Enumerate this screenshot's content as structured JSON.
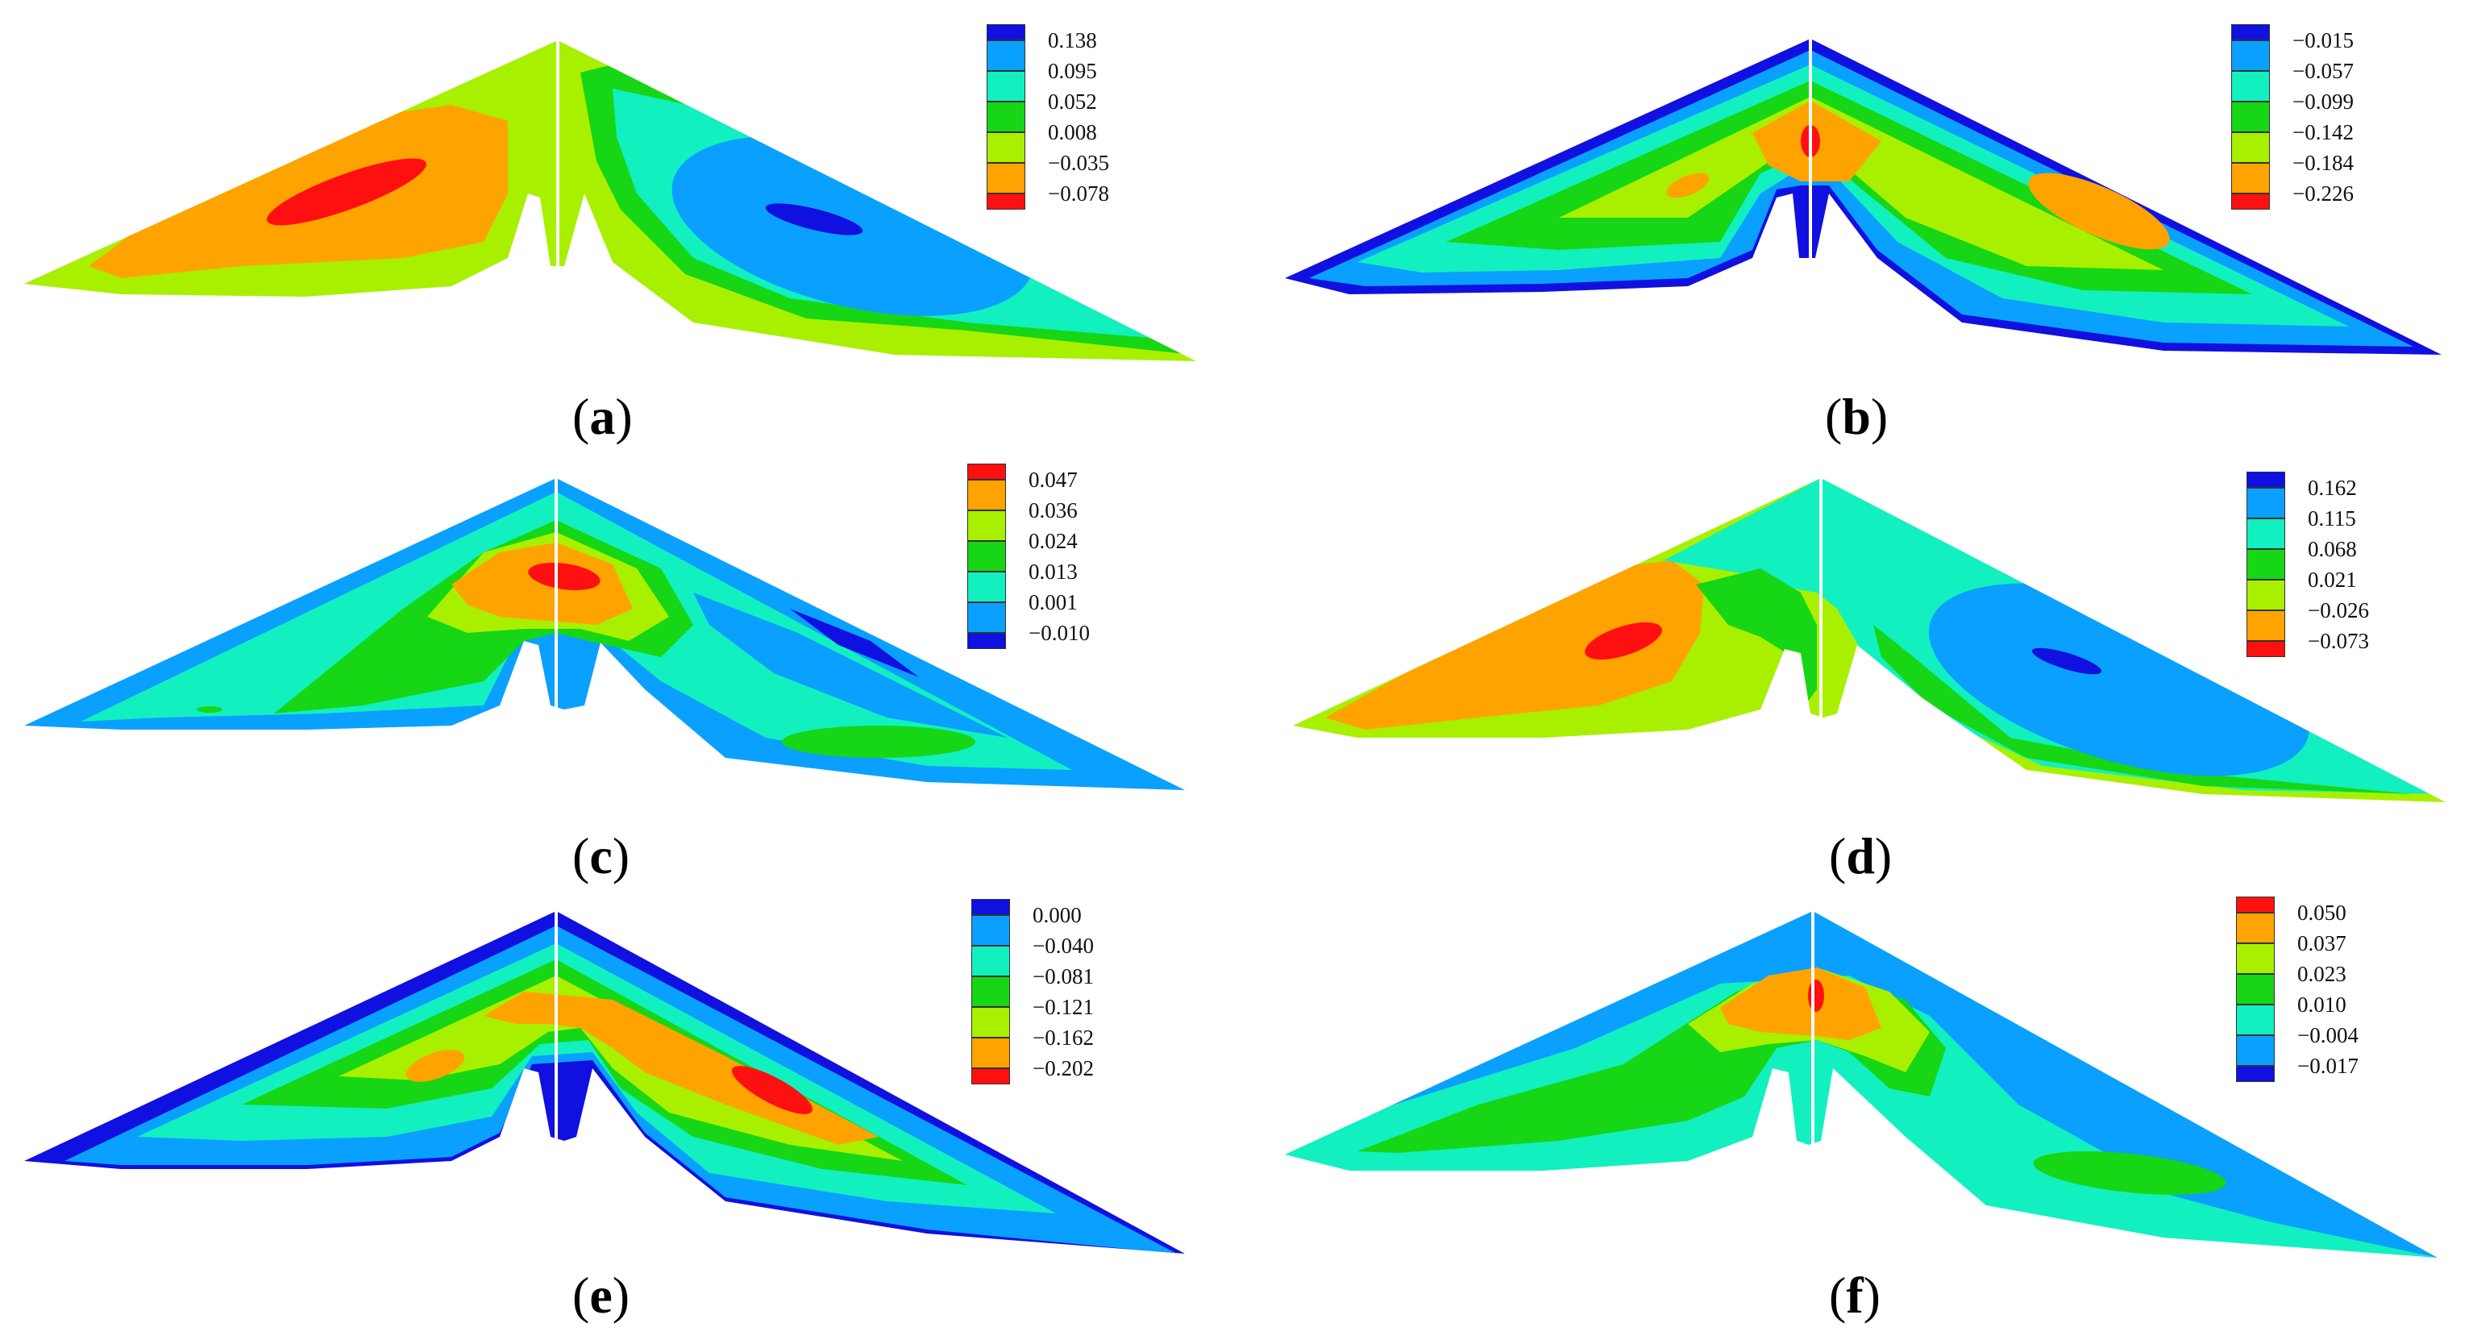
{
  "colors": {
    "dark_blue": "#1010e0",
    "blue": "#0aa0ff",
    "cyan": "#12f0c0",
    "green": "#16d616",
    "yellow_green": "#a8f000",
    "orange": "#ffa300",
    "red": "#ff1010",
    "dam_edge": "#ffffff"
  },
  "panels": [
    {
      "id": "a",
      "caption": "a",
      "legend": [
        "0.138",
        "0.095",
        "0.052",
        "0.008",
        "−0.035",
        "−0.078"
      ],
      "legend_colors": [
        "dark_blue",
        "blue",
        "cyan",
        "green",
        "yellow_green",
        "orange",
        "red"
      ]
    },
    {
      "id": "b",
      "caption": "b",
      "legend": [
        "−0.015",
        "−0.057",
        "−0.099",
        "−0.142",
        "−0.184",
        "−0.226"
      ],
      "legend_colors": [
        "dark_blue",
        "blue",
        "cyan",
        "green",
        "yellow_green",
        "orange",
        "red"
      ]
    },
    {
      "id": "c",
      "caption": "c",
      "legend": [
        "0.047",
        "0.036",
        "0.024",
        "0.013",
        "0.001",
        "−0.010"
      ],
      "legend_colors": [
        "red",
        "orange",
        "yellow_green",
        "green",
        "cyan",
        "blue",
        "dark_blue"
      ]
    },
    {
      "id": "d",
      "caption": "d",
      "legend": [
        "0.162",
        "0.115",
        "0.068",
        "0.021",
        "−0.026",
        "−0.073"
      ],
      "legend_colors": [
        "dark_blue",
        "blue",
        "cyan",
        "green",
        "yellow_green",
        "orange",
        "red"
      ]
    },
    {
      "id": "e",
      "caption": "e",
      "legend": [
        "0.000",
        "−0.040",
        "−0.081",
        "−0.121",
        "−0.162",
        "−0.202"
      ],
      "legend_colors": [
        "dark_blue",
        "blue",
        "cyan",
        "green",
        "yellow_green",
        "orange",
        "red"
      ]
    },
    {
      "id": "f",
      "caption": "f",
      "legend": [
        "0.050",
        "0.037",
        "0.023",
        "0.010",
        "−0.004",
        "−0.017"
      ],
      "legend_colors": [
        "red",
        "orange",
        "yellow_green",
        "green",
        "cyan",
        "blue",
        "dark_blue"
      ]
    }
  ]
}
